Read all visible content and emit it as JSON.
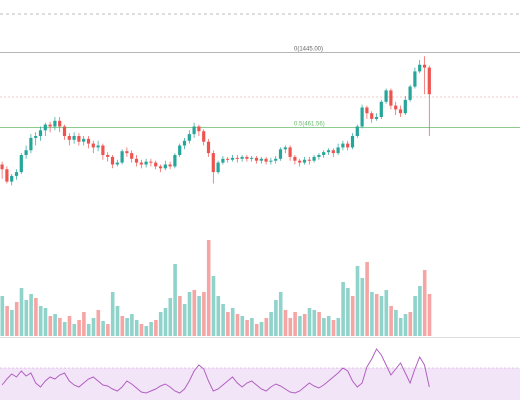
{
  "colors": {
    "background": "#ffffff",
    "up": "#26a69a",
    "down": "#ef5350",
    "volume_up": "#8fd3cb",
    "volume_down": "#f4a5a4",
    "fib_top": "#9e9e9e",
    "fib_mid": "#66bb6a",
    "dotted_red": "#f3b7b6",
    "dashed_top": "#a8a8a8",
    "rsi_line": "#b060c0",
    "rsi_band": "#f3e5f8",
    "rsi_band_border": "#ce93d8",
    "pane_divider": "#bdbdbd"
  },
  "chart_data": {
    "type": "candlestick",
    "grid": false,
    "fib_levels": [
      {
        "label": "0(1445.00)",
        "value": 1445.0
      },
      {
        "label": "0.5(461.56)",
        "value": 461.56
      }
    ],
    "candles": [
      [
        30,
        25,
        33,
        15
      ],
      [
        25,
        12,
        28,
        10
      ],
      [
        12,
        18,
        20,
        8
      ],
      [
        18,
        22,
        25,
        14
      ],
      [
        22,
        40,
        42,
        20
      ],
      [
        40,
        45,
        50,
        36
      ],
      [
        45,
        58,
        62,
        42
      ],
      [
        58,
        60,
        64,
        50
      ],
      [
        60,
        66,
        70,
        55
      ],
      [
        66,
        72,
        74,
        60
      ],
      [
        72,
        70,
        75,
        64
      ],
      [
        70,
        76,
        80,
        66
      ],
      [
        76,
        70,
        80,
        64
      ],
      [
        70,
        60,
        72,
        56
      ],
      [
        60,
        56,
        63,
        50
      ],
      [
        56,
        60,
        64,
        52
      ],
      [
        60,
        54,
        63,
        50
      ],
      [
        54,
        57,
        60,
        50
      ],
      [
        57,
        52,
        60,
        47
      ],
      [
        52,
        48,
        55,
        42
      ],
      [
        48,
        50,
        55,
        44
      ],
      [
        50,
        40,
        52,
        35
      ],
      [
        40,
        38,
        43,
        33
      ],
      [
        38,
        30,
        40,
        26
      ],
      [
        30,
        32,
        35,
        28
      ],
      [
        32,
        44,
        46,
        30
      ],
      [
        44,
        42,
        48,
        38
      ],
      [
        42,
        36,
        45,
        32
      ],
      [
        36,
        32,
        40,
        28
      ],
      [
        32,
        30,
        35,
        26
      ],
      [
        30,
        33,
        36,
        27
      ],
      [
        33,
        32,
        36,
        28
      ],
      [
        32,
        28,
        34,
        25
      ],
      [
        28,
        26,
        30,
        22
      ],
      [
        26,
        30,
        34,
        24
      ],
      [
        30,
        28,
        33,
        25
      ],
      [
        28,
        40,
        42,
        26
      ],
      [
        40,
        50,
        52,
        38
      ],
      [
        50,
        55,
        58,
        46
      ],
      [
        55,
        62,
        66,
        52
      ],
      [
        62,
        70,
        74,
        58
      ],
      [
        70,
        65,
        72,
        60
      ],
      [
        65,
        54,
        67,
        50
      ],
      [
        54,
        42,
        57,
        38
      ],
      [
        42,
        22,
        45,
        10
      ],
      [
        22,
        32,
        34,
        20
      ],
      [
        32,
        36,
        39,
        30
      ],
      [
        36,
        35,
        38,
        32
      ],
      [
        35,
        37,
        40,
        33
      ],
      [
        37,
        36,
        40,
        32
      ],
      [
        36,
        38,
        40,
        33
      ],
      [
        38,
        36,
        40,
        33
      ],
      [
        36,
        37,
        39,
        33
      ],
      [
        37,
        34,
        39,
        31
      ],
      [
        34,
        36,
        38,
        31
      ],
      [
        36,
        33,
        38,
        30
      ],
      [
        33,
        34,
        37,
        30
      ],
      [
        34,
        36,
        39,
        31
      ],
      [
        36,
        46,
        48,
        34
      ],
      [
        46,
        48,
        50,
        42
      ],
      [
        48,
        38,
        50,
        34
      ],
      [
        38,
        34,
        40,
        30
      ],
      [
        34,
        32,
        36,
        28
      ],
      [
        32,
        35,
        38,
        30
      ],
      [
        35,
        34,
        38,
        30
      ],
      [
        34,
        38,
        40,
        32
      ],
      [
        38,
        40,
        42,
        35
      ],
      [
        40,
        43,
        45,
        37
      ],
      [
        43,
        45,
        47,
        40
      ],
      [
        45,
        42,
        47,
        38
      ],
      [
        42,
        48,
        52,
        40
      ],
      [
        48,
        52,
        55,
        45
      ],
      [
        52,
        48,
        55,
        45
      ],
      [
        48,
        60,
        63,
        46
      ],
      [
        60,
        70,
        72,
        58
      ],
      [
        70,
        90,
        93,
        68
      ],
      [
        90,
        84,
        92,
        78
      ],
      [
        84,
        78,
        86,
        74
      ],
      [
        78,
        80,
        84,
        76
      ],
      [
        80,
        96,
        98,
        78
      ],
      [
        96,
        108,
        110,
        94
      ],
      [
        108,
        92,
        110,
        88
      ],
      [
        92,
        88,
        96,
        82
      ],
      [
        88,
        84,
        92,
        80
      ],
      [
        84,
        98,
        102,
        82
      ],
      [
        98,
        112,
        114,
        96
      ],
      [
        112,
        128,
        132,
        110
      ],
      [
        128,
        135,
        140,
        126
      ],
      [
        135,
        132,
        144,
        104
      ],
      [
        132,
        104,
        134,
        60
      ]
    ],
    "volume": [
      [
        40,
        1
      ],
      [
        30,
        0
      ],
      [
        26,
        1
      ],
      [
        34,
        0
      ],
      [
        48,
        1
      ],
      [
        36,
        1
      ],
      [
        42,
        1
      ],
      [
        38,
        0
      ],
      [
        30,
        1
      ],
      [
        28,
        1
      ],
      [
        20,
        0
      ],
      [
        22,
        1
      ],
      [
        18,
        0
      ],
      [
        14,
        1
      ],
      [
        20,
        0
      ],
      [
        12,
        1
      ],
      [
        16,
        0
      ],
      [
        24,
        0
      ],
      [
        12,
        1
      ],
      [
        18,
        1
      ],
      [
        26,
        0
      ],
      [
        15,
        1
      ],
      [
        12,
        0
      ],
      [
        44,
        1
      ],
      [
        30,
        1
      ],
      [
        20,
        0
      ],
      [
        18,
        1
      ],
      [
        22,
        1
      ],
      [
        16,
        1
      ],
      [
        12,
        0
      ],
      [
        10,
        1
      ],
      [
        14,
        1
      ],
      [
        16,
        0
      ],
      [
        24,
        1
      ],
      [
        28,
        1
      ],
      [
        38,
        1
      ],
      [
        72,
        1
      ],
      [
        40,
        0
      ],
      [
        32,
        1
      ],
      [
        44,
        1
      ],
      [
        46,
        0
      ],
      [
        40,
        1
      ],
      [
        44,
        0
      ],
      [
        96,
        0
      ],
      [
        60,
        1
      ],
      [
        40,
        1
      ],
      [
        32,
        1
      ],
      [
        24,
        0
      ],
      [
        28,
        1
      ],
      [
        22,
        0
      ],
      [
        20,
        1
      ],
      [
        16,
        0
      ],
      [
        18,
        1
      ],
      [
        12,
        0
      ],
      [
        14,
        1
      ],
      [
        18,
        0
      ],
      [
        24,
        1
      ],
      [
        36,
        1
      ],
      [
        44,
        1
      ],
      [
        26,
        0
      ],
      [
        18,
        0
      ],
      [
        24,
        0
      ],
      [
        20,
        1
      ],
      [
        22,
        0
      ],
      [
        28,
        1
      ],
      [
        26,
        1
      ],
      [
        24,
        0
      ],
      [
        18,
        1
      ],
      [
        20,
        1
      ],
      [
        16,
        0
      ],
      [
        18,
        1
      ],
      [
        54,
        1
      ],
      [
        48,
        1
      ],
      [
        40,
        0
      ],
      [
        70,
        1
      ],
      [
        58,
        1
      ],
      [
        74,
        0
      ],
      [
        44,
        1
      ],
      [
        42,
        0
      ],
      [
        40,
        1
      ],
      [
        46,
        1
      ],
      [
        30,
        0
      ],
      [
        26,
        1
      ],
      [
        18,
        1
      ],
      [
        22,
        1
      ],
      [
        24,
        0
      ],
      [
        40,
        1
      ],
      [
        50,
        1
      ],
      [
        66,
        0
      ],
      [
        42,
        0
      ]
    ],
    "rsi": [
      10,
      16,
      21,
      18,
      24,
      19,
      22,
      12,
      8,
      14,
      18,
      16,
      20,
      22,
      14,
      10,
      8,
      12,
      16,
      18,
      14,
      10,
      9,
      6,
      4,
      8,
      14,
      11,
      7,
      3,
      2,
      4,
      6,
      9,
      11,
      8,
      4,
      2,
      6,
      14,
      24,
      30,
      26,
      14,
      4,
      6,
      10,
      14,
      18,
      12,
      8,
      12,
      14,
      10,
      6,
      4,
      8,
      11,
      9,
      6,
      3,
      2,
      4,
      8,
      12,
      9,
      7,
      10,
      14,
      18,
      22,
      27,
      24,
      14,
      8,
      12,
      28,
      36,
      46,
      40,
      30,
      20,
      26,
      32,
      22,
      12,
      26,
      38,
      30,
      8
    ]
  }
}
